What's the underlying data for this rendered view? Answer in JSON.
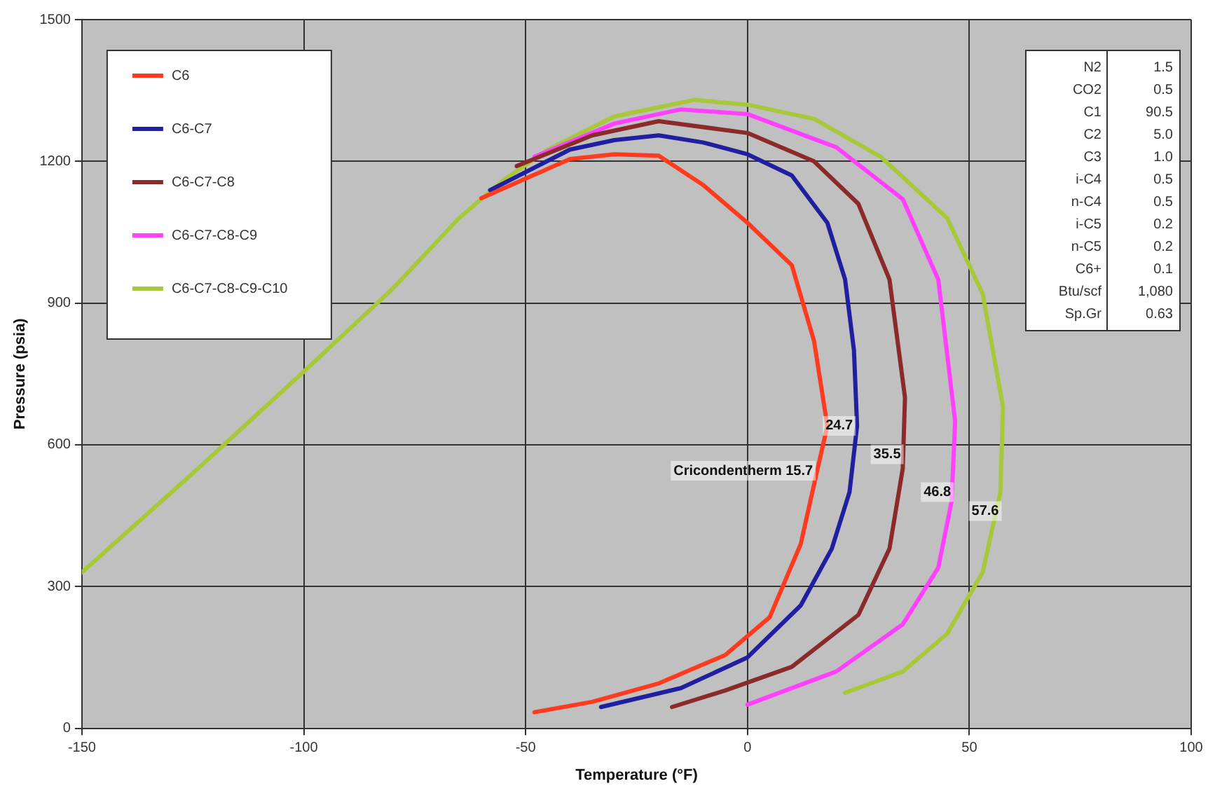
{
  "chart_data": {
    "type": "line",
    "xlabel": "Temperature (°F)",
    "ylabel": "Pressure (psia)",
    "xlim": [
      -150,
      100
    ],
    "xticks": [
      -150,
      -100,
      -50,
      0,
      50,
      100
    ],
    "ylim": [
      0,
      1500
    ],
    "yticks": [
      0,
      300,
      600,
      900,
      1200,
      1500
    ],
    "grid": true,
    "legend": "top left",
    "marker": "none",
    "line_style": "solid",
    "series": [
      {
        "name": "C6",
        "color": "#ff3b1f",
        "x": [
          -60,
          -40,
          -30,
          -20,
          -10,
          0,
          10,
          15,
          18,
          15.7,
          12,
          5,
          -5,
          -20,
          -35,
          -48
        ],
        "values": [
          1122,
          1205,
          1215,
          1212,
          1150,
          1070,
          980,
          820,
          640,
          545,
          390,
          235,
          155,
          95,
          56,
          34
        ]
      },
      {
        "name": "C6-C7",
        "color": "#1f1f9f",
        "x": [
          -58,
          -40,
          -30,
          -20,
          -10,
          0,
          10,
          18,
          22,
          24,
          24.7,
          23,
          19,
          12,
          0,
          -15,
          -33
        ],
        "values": [
          1139,
          1225,
          1245,
          1255,
          1240,
          1215,
          1170,
          1070,
          950,
          800,
          640,
          500,
          380,
          260,
          150,
          85,
          45
        ]
      },
      {
        "name": "C6-C7-C8",
        "color": "#8b2a2a",
        "x": [
          -52,
          -35,
          -20,
          0,
          15,
          25,
          32,
          35.5,
          35,
          32,
          25,
          10,
          -5,
          -17
        ],
        "values": [
          1190,
          1255,
          1285,
          1260,
          1200,
          1110,
          950,
          700,
          550,
          380,
          240,
          130,
          80,
          45
        ]
      },
      {
        "name": "C6-C7-C8-C9",
        "color": "#ff40ff",
        "x": [
          -48,
          -30,
          -15,
          0,
          20,
          35,
          43,
          46.8,
          46,
          43,
          35,
          20,
          0
        ],
        "values": [
          1210,
          1280,
          1310,
          1300,
          1230,
          1120,
          950,
          650,
          480,
          340,
          220,
          120,
          50
        ]
      },
      {
        "name": "C6-C7-C8-C9-C10",
        "color": "#a8c83a",
        "x": [
          -150,
          -125,
          -100,
          -80,
          -65,
          -55,
          -45,
          -30,
          -12,
          0,
          15,
          30,
          45,
          53,
          57.6,
          57,
          53,
          45,
          35,
          22
        ],
        "values": [
          330,
          540,
          755,
          930,
          1080,
          1160,
          1225,
          1295,
          1330,
          1320,
          1290,
          1210,
          1080,
          920,
          680,
          500,
          330,
          200,
          120,
          75
        ]
      }
    ],
    "annotations": [
      {
        "text": "Cricondentherm 15.7",
        "x": 15.7,
        "y": 545
      },
      {
        "text": "24.7",
        "x": 24.7,
        "y": 640
      },
      {
        "text": "35.5",
        "x": 35.5,
        "y": 580
      },
      {
        "text": "46.8",
        "x": 46.8,
        "y": 500
      },
      {
        "text": "57.6",
        "x": 57.6,
        "y": 460
      },
      "N2 1.5",
      "CO2 0.5",
      "C1 90.5",
      "C2 5.0",
      "C3 1.0",
      "i-C4 0.5",
      "n-C4 0.5",
      "i-C5 0.2",
      "n-C5 0.2",
      "C6+ 0.1",
      "Btu/scf 1,080",
      "Sp.Gr 0.63"
    ]
  }
}
